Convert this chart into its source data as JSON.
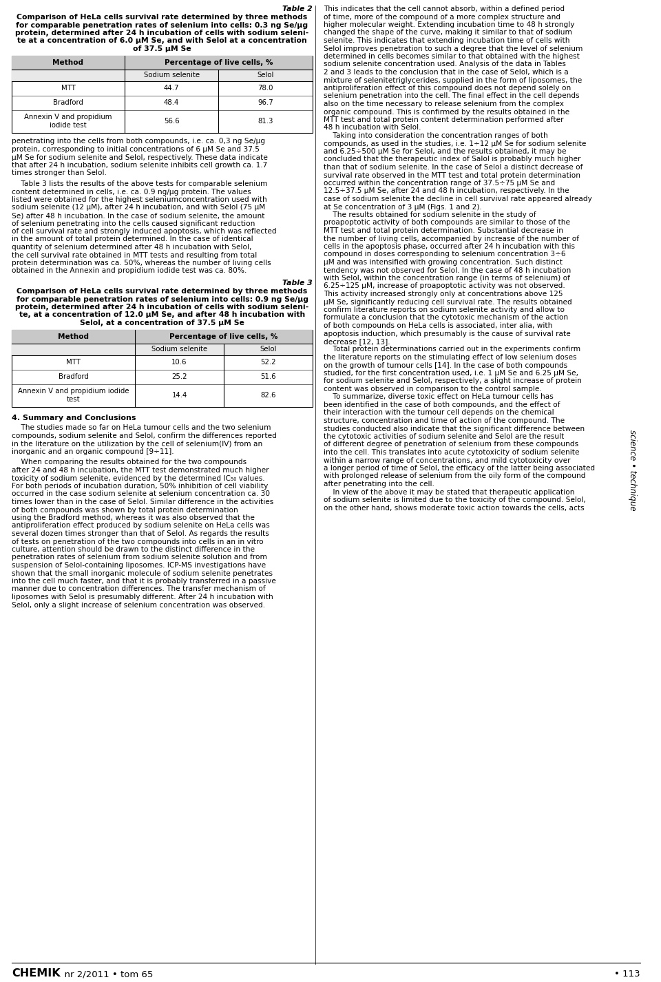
{
  "page_width": 9.6,
  "page_height": 14.26,
  "bg_color": "#ffffff",
  "table2_label": "Table 2",
  "table2_caption_line1": "Comparison of HeLa cells survival rate determined by three methods",
  "table2_caption_line2": "for comparable penetration rates of selenium into cells: 0.3 ng Se/μg",
  "table2_caption_line3": "protein, determined after 24 h incubation of cells with sodium seleni-",
  "table2_caption_line4": "te at a concentration of 6.0 μM Se, and with Selol at a concentration",
  "table2_caption_line5": "of 37.5 μM Se",
  "table2_header_col1": "Method",
  "table2_header_col2": "Percentage of live cells, %",
  "table2_subheader_col2a": "Sodium selenite",
  "table2_subheader_col2b": "Selol",
  "table2_rows": [
    [
      "MTT",
      "44.7",
      "78.0"
    ],
    [
      "Bradford",
      "48.4",
      "96.7"
    ],
    [
      "Annexin V and propidium\niodide test",
      "56.6",
      "81.3"
    ]
  ],
  "table3_label": "Table 3",
  "table3_caption_line1": "Comparison of HeLa cells survival rate determined by three methods",
  "table3_caption_line2": "for comparable penetration rates of selenium into cells: 0.9 ng Se/μg",
  "table3_caption_line3": "protein, determined after 24 h incubation of cells with sodium seleni-",
  "table3_caption_line4": "te, at a concentration of 12.0 μM Se, and after 48 h incubation with",
  "table3_caption_line5": "Selol, at a concentration of 37.5 μM Se",
  "table3_header_col1": "Method",
  "table3_header_col2": "Percentage of live cells, %",
  "table3_subheader_col2a": "Sodium selenite",
  "table3_subheader_col2b": "Selol",
  "table3_rows": [
    [
      "MTT",
      "10.6",
      "52.2"
    ],
    [
      "Bradford",
      "25.2",
      "51.6"
    ],
    [
      "Annexin V and propidium iodide\ntest",
      "14.4",
      "82.6"
    ]
  ],
  "section4_title": "4. Summary and Conclusions",
  "footer_chemik": "CHEMIK",
  "footer_rest": "  nr 2/2011 • tom 65",
  "footer_page": "• 113",
  "sidebar_text": "science • technique",
  "table_header_bg": "#c8c8c8",
  "table_subheader_bg": "#e0e0e0",
  "border_color": "#000000"
}
